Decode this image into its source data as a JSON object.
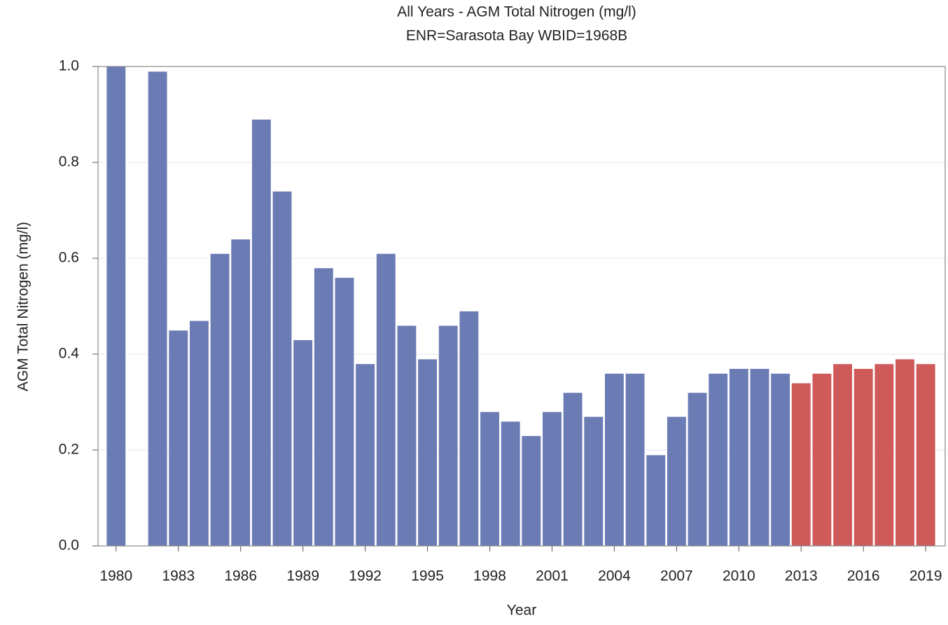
{
  "chart_data": {
    "type": "bar",
    "title": "All Years - AGM Total Nitrogen (mg/l)",
    "subtitle": "ENR=Sarasota Bay WBID=1968B",
    "x_label": "Year",
    "y_label": "AGM Total Nitrogen (mg/l)",
    "categories": [
      "1980",
      null,
      null,
      "1983",
      null,
      null,
      "1986",
      null,
      null,
      "1989",
      null,
      null,
      "1992",
      null,
      null,
      "1995",
      null,
      null,
      "1998",
      null,
      null,
      "2001",
      null,
      null,
      "2004",
      null,
      null,
      "2007",
      null,
      null,
      "2010",
      null,
      null,
      "2013",
      null,
      null,
      "2016",
      null,
      null,
      "2019"
    ],
    "values": [
      1.0,
      null,
      0.99,
      0.45,
      0.47,
      0.61,
      0.64,
      0.89,
      0.74,
      0.43,
      0.58,
      0.56,
      0.38,
      0.61,
      0.46,
      0.39,
      0.46,
      0.49,
      0.28,
      0.26,
      0.23,
      0.28,
      0.32,
      0.27,
      0.36,
      0.36,
      0.19,
      0.27,
      0.32,
      0.36,
      0.37,
      0.37,
      0.36,
      0.34,
      0.36,
      0.38,
      0.37,
      0.38,
      0.39,
      0.38
    ],
    "colors": [
      "#6b7bb4",
      "#6b7bb4",
      "#6b7bb4",
      "#6b7bb4",
      "#6b7bb4",
      "#6b7bb4",
      "#6b7bb4",
      "#6b7bb4",
      "#6b7bb4",
      "#6b7bb4",
      "#6b7bb4",
      "#6b7bb4",
      "#6b7bb4",
      "#6b7bb4",
      "#6b7bb4",
      "#6b7bb4",
      "#6b7bb4",
      "#6b7bb4",
      "#6b7bb4",
      "#6b7bb4",
      "#6b7bb4",
      "#6b7bb4",
      "#6b7bb4",
      "#6b7bb4",
      "#6b7bb4",
      "#6b7bb4",
      "#6b7bb4",
      "#6b7bb4",
      "#6b7bb4",
      "#6b7bb4",
      "#6b7bb4",
      "#6b7bb4",
      "#6b7bb4",
      "#d05a5a",
      "#d05a5a",
      "#d05a5a",
      "#d05a5a",
      "#d05a5a",
      "#d05a5a",
      "#d05a5a"
    ],
    "ylim": [
      0,
      1.0
    ],
    "yticks": [
      {
        "value": 0,
        "label": "0.0"
      },
      0.2,
      0.4,
      0.6,
      0.8,
      {
        "value": 1.0,
        "label": "1.0"
      }
    ],
    "grid": true
  }
}
